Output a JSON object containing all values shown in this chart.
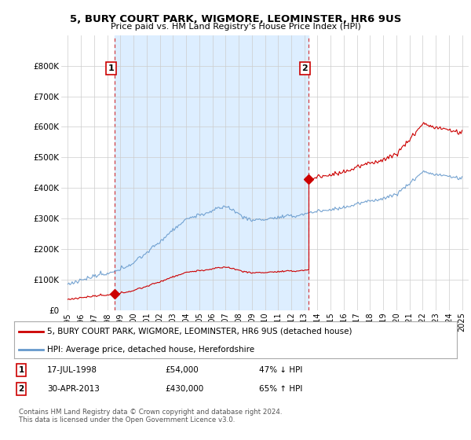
{
  "title": "5, BURY COURT PARK, WIGMORE, LEOMINSTER, HR6 9US",
  "subtitle": "Price paid vs. HM Land Registry's House Price Index (HPI)",
  "legend_line1": "5, BURY COURT PARK, WIGMORE, LEOMINSTER, HR6 9US (detached house)",
  "legend_line2": "HPI: Average price, detached house, Herefordshire",
  "transaction1_date": "17-JUL-1998",
  "transaction1_price": "£54,000",
  "transaction1_hpi": "47% ↓ HPI",
  "transaction2_date": "30-APR-2013",
  "transaction2_price": "£430,000",
  "transaction2_hpi": "65% ↑ HPI",
  "footer": "Contains HM Land Registry data © Crown copyright and database right 2024.\nThis data is licensed under the Open Government Licence v3.0.",
  "red_color": "#cc0000",
  "blue_color": "#6699cc",
  "shade_color": "#ddeeff",
  "background_color": "#ffffff",
  "grid_color": "#cccccc",
  "ylim_min": 0,
  "ylim_max": 900000,
  "xlim_min": 1994.5,
  "xlim_max": 2025.5
}
